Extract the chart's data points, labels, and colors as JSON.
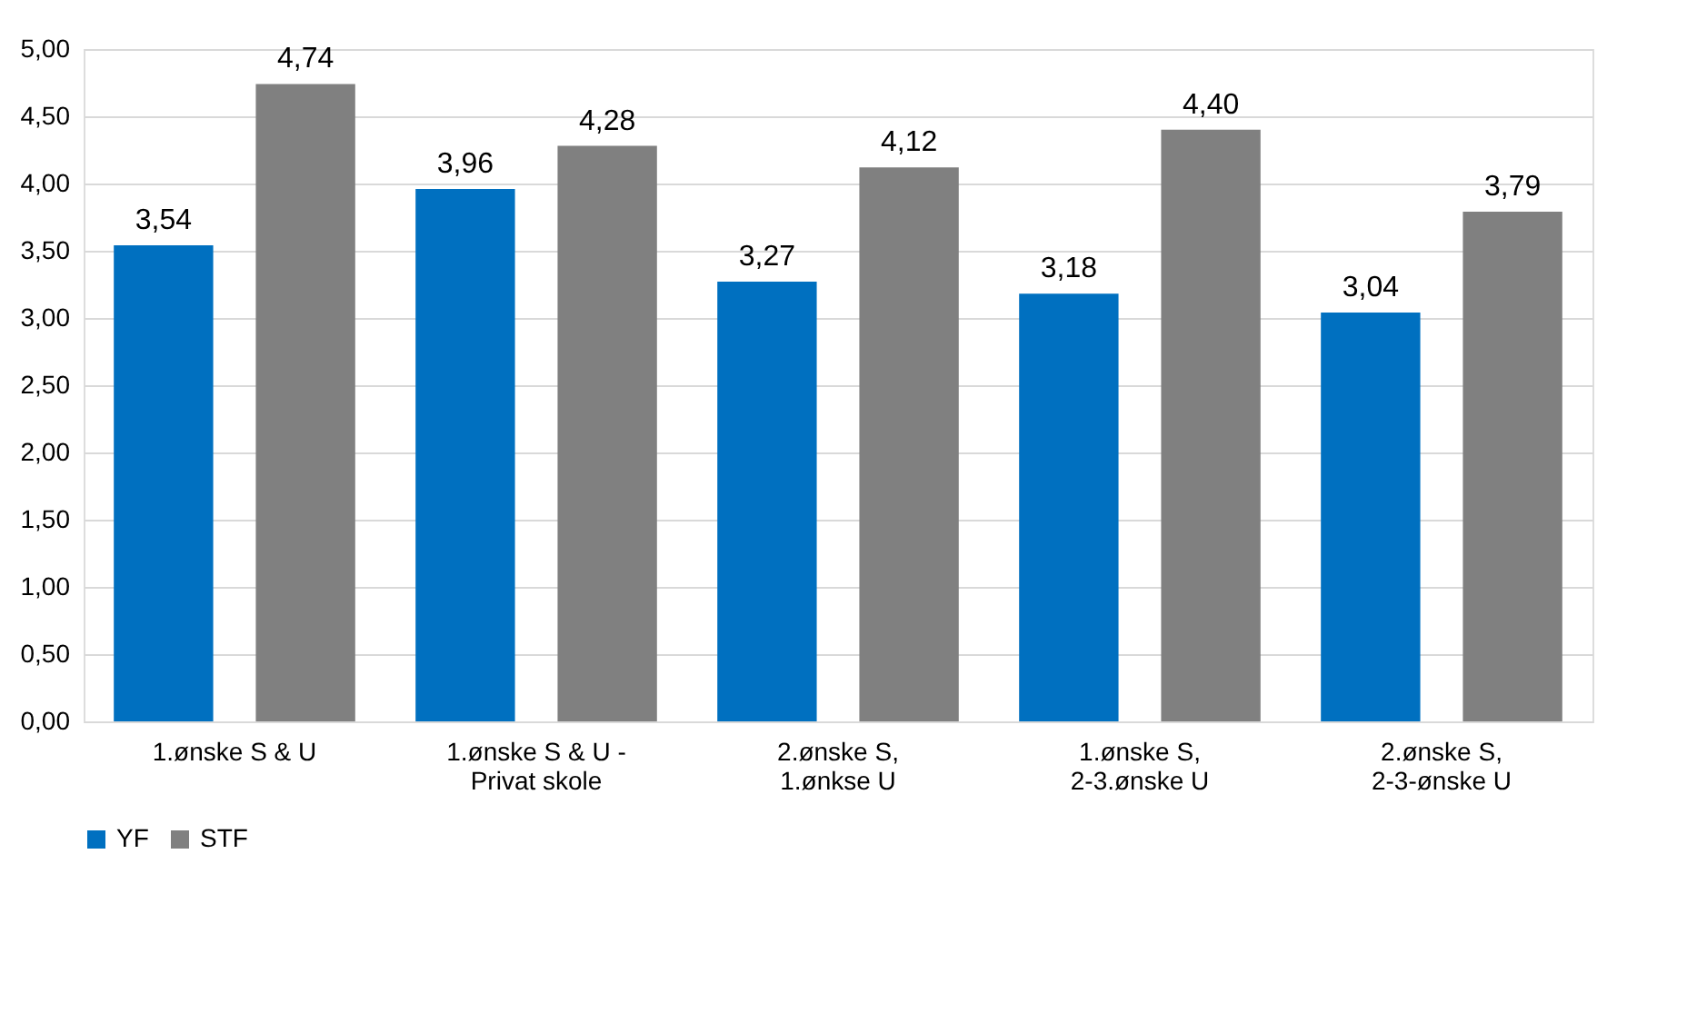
{
  "chart_data": {
    "type": "bar",
    "categories": [
      "1.ønske S & U",
      "1.ønske S & U - Privat skole",
      "2.ønske S, 1.ønkse U",
      "1.ønske S, 2-3.ønske U",
      "2.ønske S, 2-3-ønske U"
    ],
    "series": [
      {
        "name": "YF",
        "color": "#0070c0",
        "values": [
          3.54,
          3.96,
          3.27,
          3.18,
          3.04
        ],
        "value_labels": [
          "3,54",
          "3,96",
          "3,27",
          "3,18",
          "3,04"
        ]
      },
      {
        "name": "STF",
        "color": "#808080",
        "values": [
          4.74,
          4.28,
          4.12,
          4.4,
          3.79
        ],
        "value_labels": [
          "4,74",
          "4,28",
          "4,12",
          "4,40",
          "3,79"
        ]
      }
    ],
    "ylim": [
      0,
      5
    ],
    "yticks": [
      {
        "value": 0,
        "label": "0,00"
      },
      {
        "value": 0.5,
        "label": "0,50"
      },
      {
        "value": 1,
        "label": "1,00"
      },
      {
        "value": 1.5,
        "label": "1,50"
      },
      {
        "value": 2,
        "label": "2,00"
      },
      {
        "value": 2.5,
        "label": "2,50"
      },
      {
        "value": 3,
        "label": "3,00"
      },
      {
        "value": 3.5,
        "label": "3,50"
      },
      {
        "value": 4,
        "label": "4,00"
      },
      {
        "value": 4.5,
        "label": "4,50"
      },
      {
        "value": 5,
        "label": "5,00"
      }
    ],
    "grid": "y",
    "legend": "bottom"
  }
}
